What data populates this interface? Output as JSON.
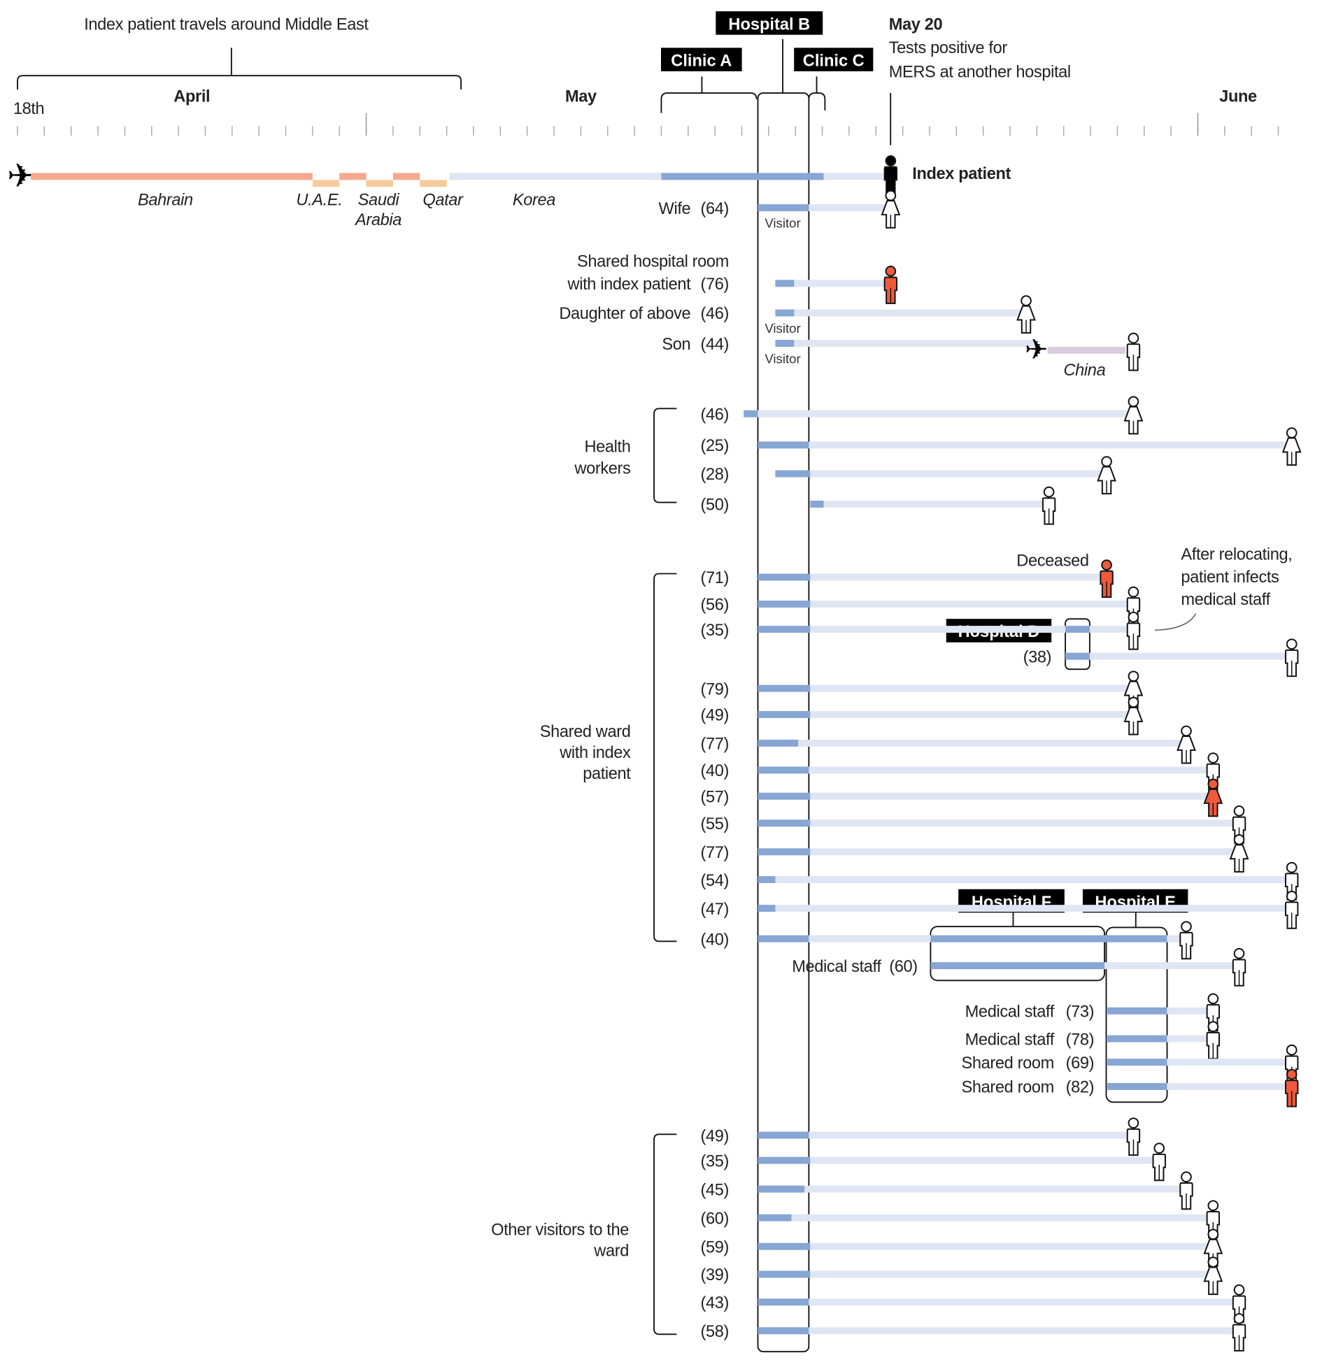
{
  "colors": {
    "hospital_stay": "#86A6D4",
    "exposure_period": "#DFE5F2",
    "bahrain": "#F6A88E",
    "other_middle_east": "#F7CC9C",
    "abroad": "#DCCADF",
    "deceased": "#EF5A3C",
    "alive": "#FFFFFF",
    "index": "#000000",
    "deceased_text": "#E0202A"
  },
  "header": {
    "travel_note": "Index patient travels around Middle East",
    "may20_date": "May 20",
    "may20_line1": "Tests positive for",
    "may20_line2": "MERS at another hospital"
  },
  "axis": {
    "start_label": "18th",
    "months": [
      {
        "label": "April",
        "at": "Apr 24.5"
      },
      {
        "label": "May",
        "at": "May 9"
      },
      {
        "label": "June",
        "at": "Jun 2.5"
      }
    ],
    "first_day": "Apr 18",
    "last_day": "Jun 4",
    "month_starts": [
      "May 1",
      "Jun 1"
    ]
  },
  "facilities": {
    "clinic_a": {
      "label": "Clinic A",
      "start": "May 12",
      "end": "May 15.55"
    },
    "hospital_b": {
      "label": "Hospital B",
      "start": "May 15.6",
      "end": "May 17.5"
    },
    "clinic_c": {
      "label": "Clinic C",
      "start": "May 17.5",
      "end": "May 18.1"
    },
    "hospital_d": {
      "label": "Hospital D"
    },
    "hospital_e": {
      "label": "Hospital E"
    },
    "hospital_f": {
      "label": "Hospital F"
    }
  },
  "index_patient": {
    "label": "Index patient",
    "travel": [
      {
        "region": "Bahrain",
        "start": "Apr 18.5",
        "end": "Apr 29",
        "color": "bahrain",
        "level": "upper"
      },
      {
        "region": "U.A.E.",
        "start": "Apr 29",
        "end": "Apr 30",
        "color": "other_middle_east",
        "level": "lower"
      },
      {
        "region": "",
        "start": "Apr 30",
        "end": "May 1",
        "color": "bahrain",
        "level": "upper"
      },
      {
        "region": "Saudi Arabia",
        "start": "May 1",
        "end": "May 2",
        "color": "other_middle_east",
        "level": "lower"
      },
      {
        "region": "",
        "start": "May 2",
        "end": "May 3",
        "color": "bahrain",
        "level": "upper"
      },
      {
        "region": "Qatar",
        "start": "May 3",
        "end": "May 4",
        "color": "other_middle_east",
        "level": "lower"
      },
      {
        "region": "Korea",
        "start": "May 4.1",
        "end": "May 20.4",
        "color": "exposure_period",
        "level": "upper"
      }
    ],
    "region_labels": [
      "Bahrain",
      "U.A.E.",
      "Saudi",
      "Arabia",
      "Qatar",
      "Korea"
    ],
    "hospital_stay": [
      "May 12",
      "May 18.05"
    ],
    "diagnosed": "May 20.55"
  },
  "groups": [
    {
      "lines": [
        "Health",
        "workers"
      ]
    },
    {
      "lines": [
        "Shared ward",
        "with index",
        "patient"
      ]
    },
    {
      "lines": [
        "Other visitors to the",
        "ward"
      ]
    }
  ],
  "annotations": {
    "deceased": "Deceased",
    "relocation": [
      "After relocating,",
      "patient infects",
      "medical staff"
    ],
    "abroad": "China"
  },
  "cases": [
    {
      "label": [
        "Wife"
      ],
      "age": "(64)",
      "note": "Visitor",
      "stays": [
        [
          "May 15.6",
          "May 17.5"
        ]
      ],
      "end": "May 20.55",
      "icon": "female",
      "status": "alive"
    },
    {
      "label": [
        "Shared hospital room",
        "with index patient"
      ],
      "age": "(76)",
      "stays": [
        [
          "May 16.25",
          "May 16.95"
        ]
      ],
      "end": "May 20.55",
      "icon": "male",
      "status": "deceased"
    },
    {
      "label": [
        "Daughter of above"
      ],
      "age": "(46)",
      "note": "Visitor",
      "stays": [
        [
          "May 16.25",
          "May 16.95"
        ]
      ],
      "end": "May 25.6",
      "icon": "female",
      "status": "alive"
    },
    {
      "label": [
        "Son"
      ],
      "age": "(44)",
      "note": "Visitor",
      "stays": [
        [
          "May 16.25",
          "May 16.95"
        ]
      ],
      "flight": "May 26",
      "abroad": [
        "May 26.4",
        "May 29.3"
      ],
      "end": "May 29.6",
      "icon": "male",
      "status": "alive"
    },
    {
      "label": [],
      "age": "(46)",
      "stays": [
        [
          "May 15.07",
          "May 15.6"
        ]
      ],
      "end": "May 29.6",
      "icon": "female",
      "status": "alive"
    },
    {
      "label": [],
      "age": "(25)",
      "stays": [
        [
          "May 15.6",
          "May 17.5"
        ]
      ],
      "end": "Jun 4.5",
      "icon": "female",
      "status": "alive"
    },
    {
      "label": [],
      "age": "(28)",
      "stays": [
        [
          "May 16.25",
          "May 17.55"
        ]
      ],
      "end": "May 28.6",
      "icon": "female",
      "status": "alive"
    },
    {
      "label": [],
      "age": "(50)",
      "stays": [
        [
          "May 17.55",
          "May 18.05"
        ]
      ],
      "end": "May 26.45",
      "icon": "male",
      "status": "alive"
    },
    {
      "label": [],
      "age": "(71)",
      "stays": [
        [
          "May 15.6",
          "May 17.55"
        ]
      ],
      "end": "May 28.6",
      "icon": "male",
      "status": "deceased"
    },
    {
      "label": [],
      "age": "(56)",
      "stays": [
        [
          "May 15.6",
          "May 17.55"
        ]
      ],
      "end": "May 29.6",
      "icon": "male",
      "status": "alive"
    },
    {
      "label": [],
      "age": "(35)",
      "stays": [
        [
          "May 15.6",
          "May 17.55"
        ],
        [
          "May 27.06",
          "May 27.97"
        ]
      ],
      "end": "May 29.6",
      "icon": "male",
      "status": "alive"
    },
    {
      "label": [],
      "age": "(38)",
      "stays": [
        [
          "May 27.06",
          "May 27.97"
        ]
      ],
      "end": "Jun 4.5",
      "icon": "male",
      "status": "alive"
    },
    {
      "label": [],
      "age": "(79)",
      "stays": [
        [
          "May 15.6",
          "May 17.55"
        ]
      ],
      "end": "May 29.6",
      "icon": "female",
      "status": "alive"
    },
    {
      "label": [],
      "age": "(49)",
      "stays": [
        [
          "May 15.6",
          "May 17.55"
        ]
      ],
      "end": "May 29.6",
      "icon": "female",
      "status": "alive"
    },
    {
      "label": [],
      "age": "(77)",
      "stays": [
        [
          "May 15.6",
          "May 17.1"
        ]
      ],
      "end": "May 31.57",
      "icon": "female",
      "status": "alive"
    },
    {
      "label": [],
      "age": "(40)",
      "stays": [
        [
          "May 15.6",
          "May 17.5"
        ]
      ],
      "end": "Jun 1.57",
      "icon": "male",
      "status": "alive"
    },
    {
      "label": [],
      "age": "(57)",
      "stays": [
        [
          "May 15.6",
          "May 17.55"
        ]
      ],
      "end": "Jun 1.57",
      "icon": "female",
      "status": "deceased"
    },
    {
      "label": [],
      "age": "(55)",
      "stays": [
        [
          "May 15.6",
          "May 17.55"
        ]
      ],
      "end": "Jun 2.54",
      "icon": "male",
      "status": "alive"
    },
    {
      "label": [],
      "age": "(77)",
      "stays": [
        [
          "May 15.6",
          "May 17.55"
        ]
      ],
      "end": "Jun 2.54",
      "icon": "female",
      "status": "alive"
    },
    {
      "label": [],
      "age": "(54)",
      "stays": [
        [
          "May 15.6",
          "May 16.25"
        ]
      ],
      "end": "Jun 4.5",
      "icon": "male",
      "status": "alive"
    },
    {
      "label": [],
      "age": "(47)",
      "stays": [
        [
          "May 15.6",
          "May 16.25"
        ]
      ],
      "end": "Jun 4.5",
      "icon": "male",
      "status": "alive"
    },
    {
      "label": [],
      "age": "(40)",
      "stays": [
        [
          "May 15.6",
          "May 17.5"
        ],
        [
          "May 22.04",
          "May 30.85"
        ]
      ],
      "end": "May 31.57",
      "icon": "male",
      "status": "alive"
    },
    {
      "label": [
        "Medical staff"
      ],
      "age": "(60)",
      "stays": [
        [
          "May 22.04",
          "May 28.52"
        ]
      ],
      "end": "Jun 2.54",
      "icon": "male",
      "status": "alive"
    },
    {
      "label": [
        "Medical staff"
      ],
      "age": "(73)",
      "stays": [
        [
          "May 28.6",
          "May 30.85"
        ]
      ],
      "end": "Jun 1.57",
      "icon": "male",
      "status": "alive"
    },
    {
      "label": [
        "Medical staff"
      ],
      "age": "(78)",
      "stays": [
        [
          "May 28.6",
          "May 30.85"
        ]
      ],
      "end": "Jun 1.57",
      "icon": "male",
      "status": "alive"
    },
    {
      "label": [
        "Shared room"
      ],
      "age": "(69)",
      "stays": [
        [
          "May 28.6",
          "May 30.85"
        ]
      ],
      "end": "Jun 4.5",
      "icon": "male",
      "status": "alive"
    },
    {
      "label": [
        "Shared room"
      ],
      "age": "(82)",
      "stays": [
        [
          "May 28.6",
          "May 30.85"
        ]
      ],
      "end": "Jun 4.5",
      "icon": "male",
      "status": "deceased"
    },
    {
      "label": [],
      "age": "(49)",
      "stays": [
        [
          "May 15.6",
          "May 17.5"
        ]
      ],
      "end": "May 29.6",
      "icon": "male",
      "status": "alive"
    },
    {
      "label": [],
      "age": "(35)",
      "stays": [
        [
          "May 15.6",
          "May 17.55"
        ]
      ],
      "end": "May 30.56",
      "icon": "male",
      "status": "alive"
    },
    {
      "label": [],
      "age": "(45)",
      "stays": [
        [
          "May 15.6",
          "May 17.34"
        ]
      ],
      "end": "May 31.57",
      "icon": "male",
      "status": "alive"
    },
    {
      "label": [],
      "age": "(60)",
      "stays": [
        [
          "May 15.6",
          "May 16.85"
        ]
      ],
      "end": "Jun 1.57",
      "icon": "male",
      "status": "alive"
    },
    {
      "label": [],
      "age": "(59)",
      "stays": [
        [
          "May 15.6",
          "May 17.55"
        ]
      ],
      "end": "Jun 1.57",
      "icon": "female",
      "status": "alive"
    },
    {
      "label": [],
      "age": "(39)",
      "stays": [
        [
          "May 15.6",
          "May 17.55"
        ]
      ],
      "end": "Jun 1.57",
      "icon": "female",
      "status": "alive"
    },
    {
      "label": [],
      "age": "(43)",
      "stays": [
        [
          "May 15.6",
          "May 17.5"
        ]
      ],
      "end": "Jun 2.54",
      "icon": "male",
      "status": "alive"
    },
    {
      "label": [],
      "age": "(58)",
      "stays": [
        [
          "May 15.6",
          "May 17.5"
        ]
      ],
      "end": "Jun 2.54",
      "icon": "male",
      "status": "alive"
    }
  ]
}
